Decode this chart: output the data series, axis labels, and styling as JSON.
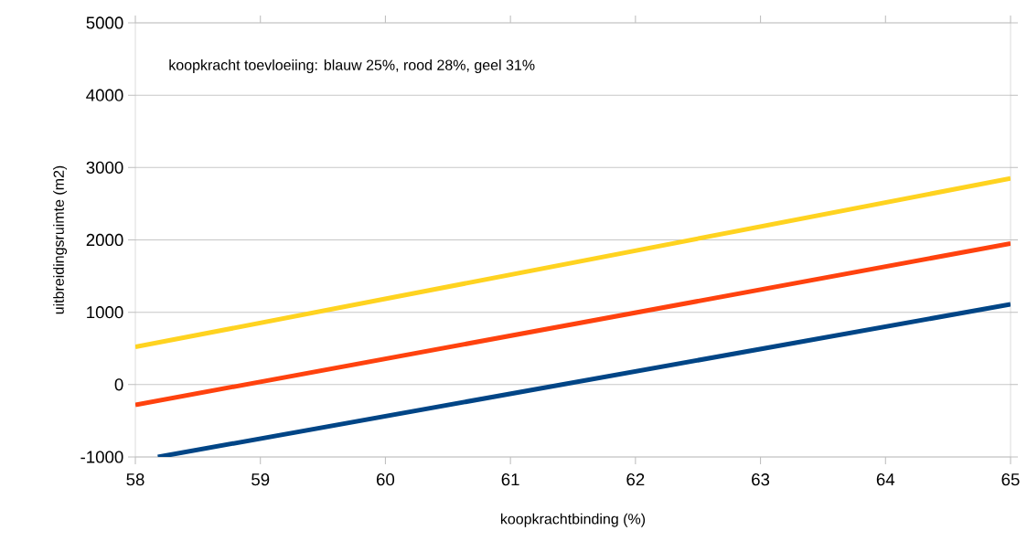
{
  "chart_data": {
    "type": "line",
    "xlabel": "koopkrachtbinding (%)",
    "ylabel": "uitbreidingsruimte (m2)",
    "annotations": [
      "koopkracht toevloeiing: blauw 25%, rood 28%, geel 31%"
    ],
    "series": [
      {
        "color": "#004586",
        "x": [
          58.18,
          65
        ],
        "values": [
          -1000,
          1110
        ]
      },
      {
        "color": "#ff420e",
        "x": [
          58,
          65
        ],
        "values": [
          -280,
          1950
        ]
      },
      {
        "color": "#ffd320",
        "x": [
          58,
          65
        ],
        "values": [
          520,
          2850
        ]
      }
    ],
    "xlim": [
      58,
      65
    ],
    "xticks": [
      58,
      59,
      60,
      61,
      62,
      63,
      64,
      65
    ],
    "ylim": [
      -1000,
      5000
    ],
    "yticks": [
      -1000,
      0,
      1000,
      2000,
      3000,
      4000,
      5000
    ],
    "grid": "y",
    "marker": "none",
    "line_style": "solid"
  }
}
